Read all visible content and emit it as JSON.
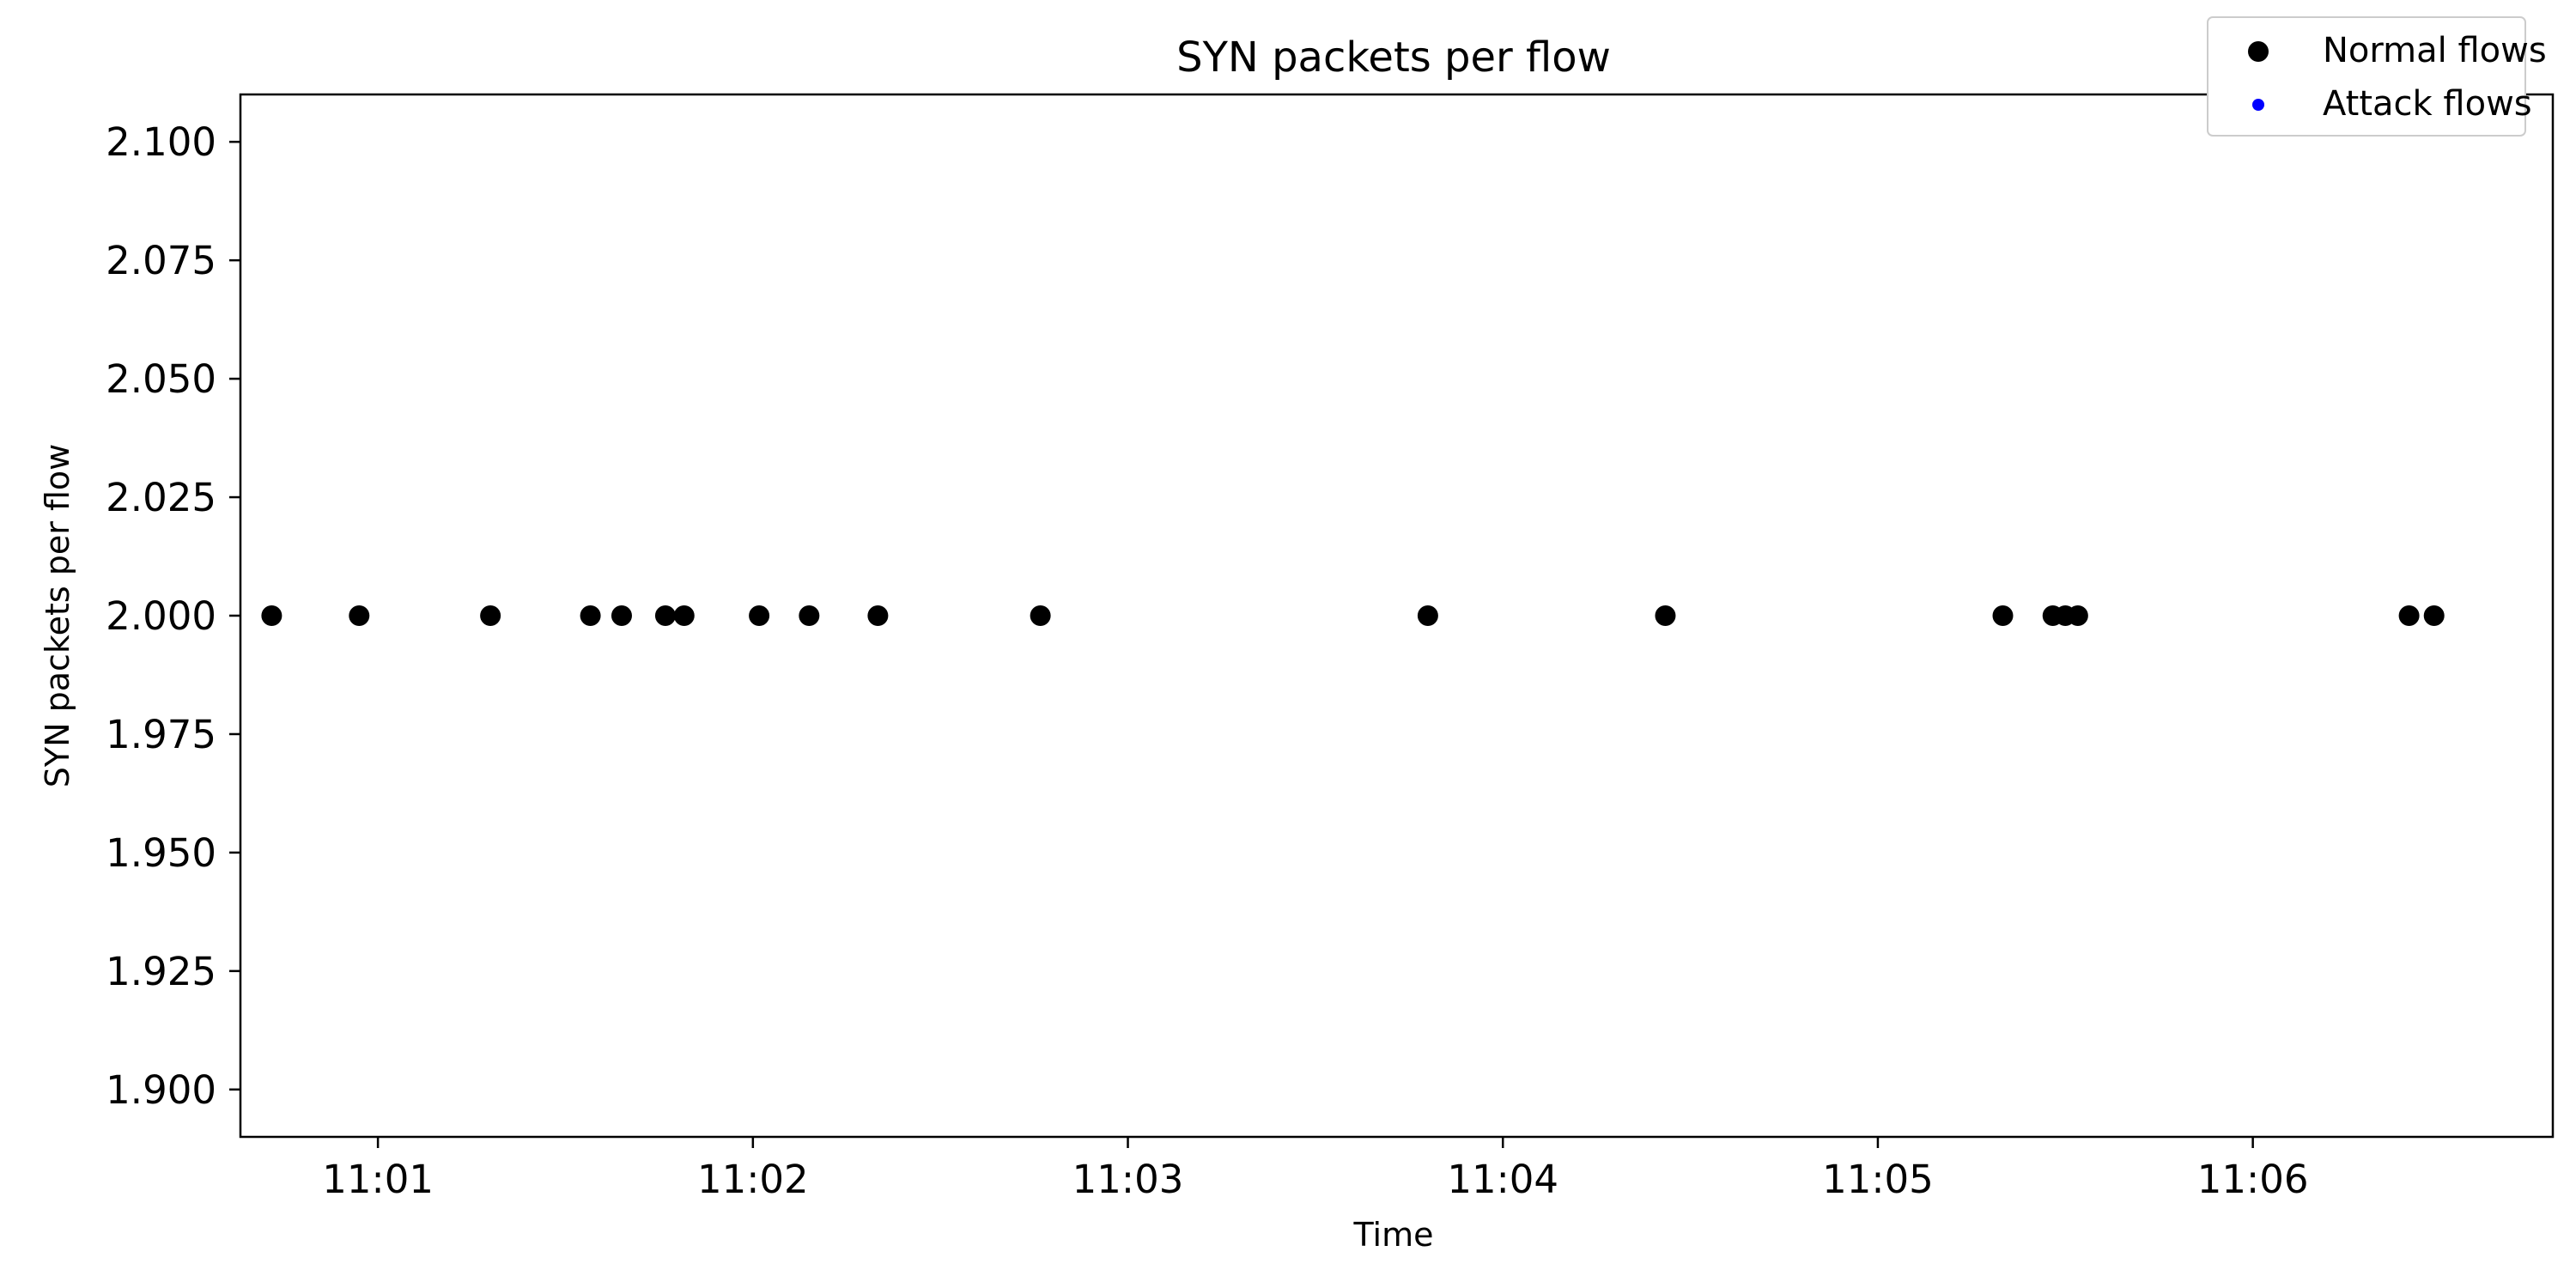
{
  "chart_data": {
    "type": "scatter",
    "title": "SYN packets per flow",
    "xlabel": "Time",
    "ylabel": "SYN packets per flow",
    "x_ticks": [
      "11:01",
      "11:02",
      "11:03",
      "11:04",
      "11:05",
      "11:06"
    ],
    "y_ticks": [
      "1.900",
      "1.925",
      "1.950",
      "1.975",
      "2.000",
      "2.025",
      "2.050",
      "2.075",
      "2.100"
    ],
    "xlim": [
      "11:00:38",
      "11:06:48"
    ],
    "ylim": [
      1.89,
      2.11
    ],
    "grid": false,
    "legend_position": "top-right",
    "series": [
      {
        "name": "Normal flows",
        "color": "#000000",
        "x": [
          "11:00:43",
          "11:00:57",
          "11:01:18",
          "11:01:34",
          "11:01:39",
          "11:01:46",
          "11:01:49",
          "11:02:01",
          "11:02:09",
          "11:02:20",
          "11:02:46",
          "11:03:48",
          "11:04:26",
          "11:05:20",
          "11:05:28",
          "11:05:30",
          "11:05:32",
          "11:06:25",
          "11:06:29"
        ],
        "y": [
          2,
          2,
          2,
          2,
          2,
          2,
          2,
          2,
          2,
          2,
          2,
          2,
          2,
          2,
          2,
          2,
          2,
          2,
          2
        ]
      },
      {
        "name": "Attack flows",
        "color": "#0000ff",
        "x": [],
        "y": []
      }
    ]
  }
}
